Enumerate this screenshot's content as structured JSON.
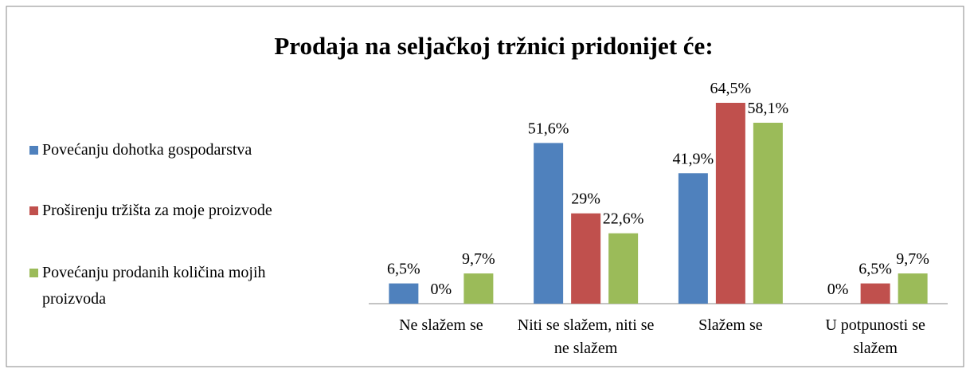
{
  "chart_data": {
    "type": "bar",
    "title": "Prodaja na seljačkoj tržnici pridonijet će:",
    "categories": [
      "Ne slažem se",
      "Niti se slažem, niti se ne slažem",
      "Slažem se",
      "U potpunosti se slažem"
    ],
    "series": [
      {
        "name": "Povećanju dohotka gospodarstva",
        "color": "#4f81bd",
        "values": [
          6.5,
          51.6,
          41.9,
          0
        ],
        "value_labels": [
          "6,5%",
          "51,6%",
          "41,9%",
          "0%"
        ]
      },
      {
        "name": "Proširenju tržišta za moje proizvode",
        "color": "#c0504d",
        "values": [
          0,
          29,
          64.5,
          6.5
        ],
        "value_labels": [
          "0%",
          "29%",
          "64,5%",
          "6,5%"
        ]
      },
      {
        "name": "Povećanju prodanih količina mojih proizvoda",
        "color": "#9bbb59",
        "values": [
          9.7,
          22.6,
          58.1,
          9.7
        ],
        "value_labels": [
          "9,7%",
          "22,6%",
          "58,1%",
          "9,7%"
        ]
      }
    ],
    "legend": "left"
  }
}
